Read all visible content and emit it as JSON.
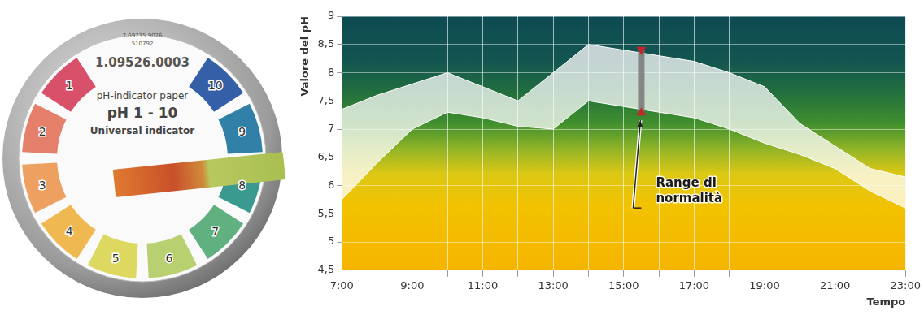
{
  "chart_data": {
    "type": "area",
    "x_label": "Tempo",
    "y_label": "Valore del pH",
    "categories": [
      "7:00",
      null,
      "9:00",
      null,
      "11:00",
      null,
      "13:00",
      null,
      "15:00",
      null,
      "17:00",
      null,
      "19:00",
      null,
      "21:00",
      null,
      "23:00"
    ],
    "series": [
      {
        "color": "#ffffff",
        "values": [
          5.75,
          6.4,
          7.0,
          7.3,
          7.2,
          7.05,
          7.0,
          7.5,
          7.4,
          7.3,
          7.2,
          7.0,
          6.75,
          6.55,
          6.3,
          5.9,
          5.6
        ]
      },
      {
        "color": "#ffffff",
        "values": [
          7.35,
          7.6,
          7.8,
          8.0,
          7.75,
          7.5,
          8.0,
          8.5,
          8.4,
          8.3,
          8.2,
          8.0,
          7.75,
          7.1,
          6.7,
          6.3,
          6.15
        ]
      }
    ],
    "ylim": [
      4.5,
      9
    ],
    "yticks": [
      {
        "value": 4.5,
        "label": "4,5"
      },
      5,
      {
        "value": 5.5,
        "label": "5,5"
      },
      6,
      {
        "value": 6.5,
        "label": "6,5"
      },
      7,
      {
        "value": 7.5,
        "label": "7,5"
      },
      8,
      {
        "value": 8.5,
        "label": "8,5"
      },
      9
    ],
    "grid": true,
    "annotations": [
      {
        "text": "Range di\nnormalità",
        "x": 15.5,
        "y_from": 7.3,
        "y_to": 8.4
      }
    ]
  },
  "indicator_dial": {
    "code_small": [
      "7.69735.9026",
      "510792"
    ],
    "code": "1.09526.0003",
    "lines": [
      "pH-indicator paper",
      "pH 1 - 10",
      "Universal indicator"
    ],
    "scale": [
      1,
      2,
      3,
      4,
      5,
      6,
      7,
      8,
      9,
      10
    ],
    "colors": [
      "#d9506a",
      "#e4806a",
      "#eea060",
      "#f0b850",
      "#dcd860",
      "#b8d070",
      "#60b080",
      "#3a9a90",
      "#3080a8",
      "#3560a8"
    ]
  }
}
